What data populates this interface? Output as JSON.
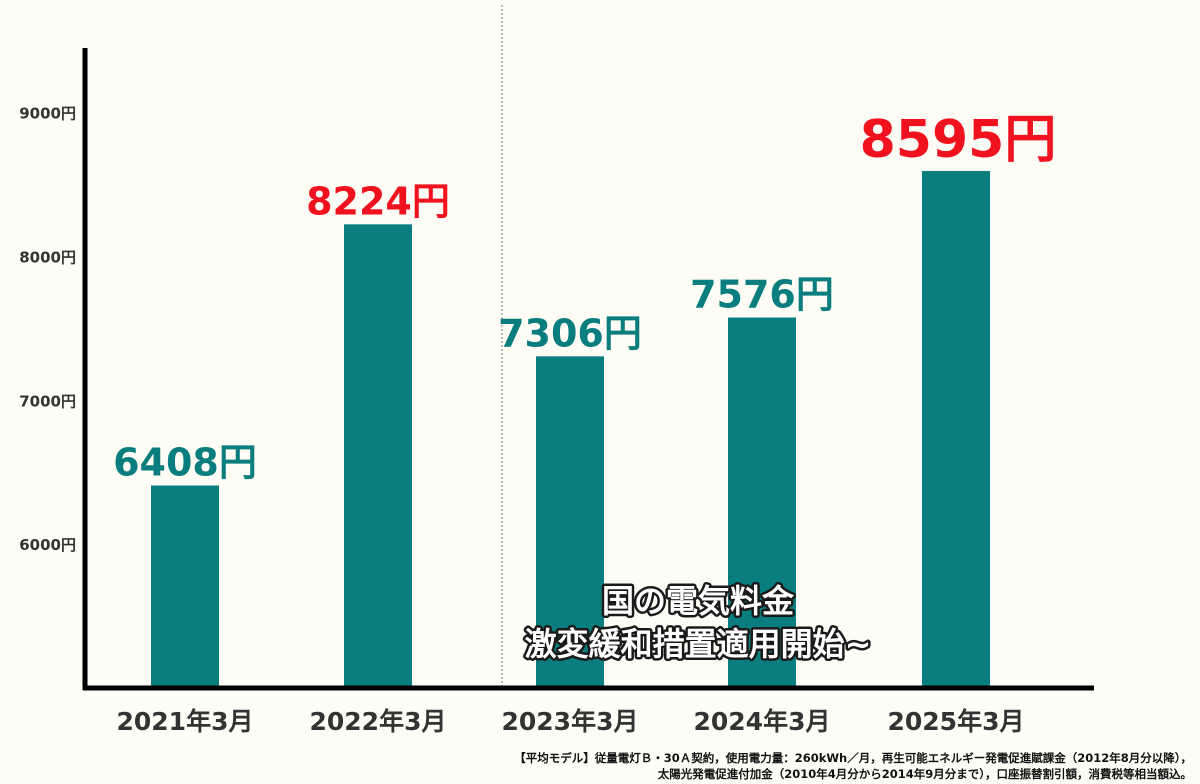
{
  "chart_data": {
    "type": "bar",
    "categories": [
      "2021年3月",
      "2022年3月",
      "2023年3月",
      "2024年3月",
      "2025年3月"
    ],
    "values": [
      6408,
      8224,
      7306,
      7576,
      8595
    ],
    "value_labels": [
      "6408円",
      "8224円",
      "7306円",
      "7576円",
      "8595円"
    ],
    "y_ticks": [
      6000,
      7000,
      8000,
      9000
    ],
    "y_tick_labels": [
      "6000円",
      "7000円",
      "8000円",
      "9000円"
    ],
    "ylim": [
      5000,
      9450
    ],
    "grid": false,
    "colors": {
      "bar": "#0a7e7e",
      "label_normal": "#0a7e7e",
      "label_highlight": "#f0121e",
      "axis": "#000000"
    },
    "highlighted_indices": [
      1,
      4
    ],
    "annotation": {
      "line1": "国の電気料金",
      "line2": "激変緩和措置適用開始~"
    }
  },
  "footnote": {
    "line1": "【平均モデル】従量電灯Ｂ・30Ａ契約，使用電力量：260kWh／月，再生可能エネルギー発電促進賦課金（2012年8月分以降），",
    "line2": "太陽光発電促進付加金（2010年4月分から2014年9月分まで），口座振替割引額，消費税等相当額込。"
  }
}
